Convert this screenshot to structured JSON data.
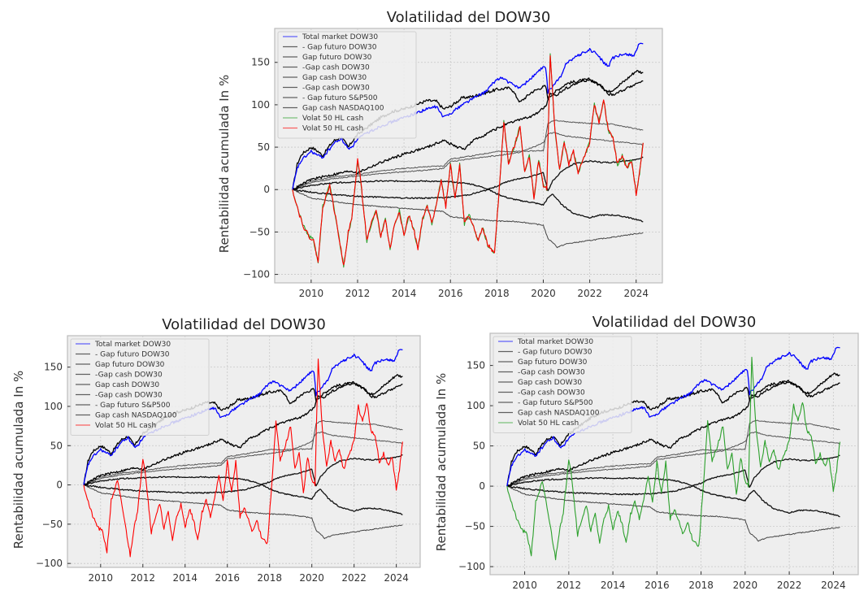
{
  "chart_data": [
    {
      "id": "top",
      "type": "line",
      "title": "Volatilidad del DOW30",
      "xlabel": "",
      "ylabel": "Rentabilidad acumulada In %",
      "xlim": [
        2008.43,
        2025.13
      ],
      "ylim": [
        -110,
        190
      ],
      "xticks": [
        "2010",
        "2012",
        "2014",
        "2016",
        "2018",
        "2020",
        "2022",
        "2024"
      ],
      "yticks": [
        "−100",
        "−50",
        "0",
        "50",
        "100",
        "150"
      ],
      "grid": true,
      "legend_position": "top-left",
      "legend": [
        "Total market DOW30",
        "- Gap futuro DOW30",
        "Gap futuro DOW30",
        "-Gap cash DOW30",
        "Gap cash DOW30",
        "-Gap cash DOW30",
        "- Gap futuro S&P500",
        "Gap cash NASDAQ100",
        "Volat 50 HL cash",
        "Volat 50 HL cash"
      ],
      "volat_colors": [
        "#2ca02c",
        "#ff0000"
      ]
    },
    {
      "id": "bottom-left",
      "type": "line",
      "title": "Volatilidad del DOW30",
      "xlabel": "",
      "ylabel": "Rentabilidad acumulada In %",
      "xlim": [
        2008.43,
        2025.13
      ],
      "ylim": [
        -105,
        190
      ],
      "xticks": [
        "2010",
        "2012",
        "2014",
        "2016",
        "2018",
        "2020",
        "2022",
        "2024"
      ],
      "yticks": [
        "−100",
        "−50",
        "0",
        "50",
        "100",
        "150"
      ],
      "grid": true,
      "legend_position": "top-left",
      "legend": [
        "Total market DOW30",
        "- Gap futuro DOW30",
        "Gap futuro DOW30",
        "-Gap cash DOW30",
        "Gap cash DOW30",
        "-Gap cash DOW30",
        "- Gap futuro S&P500",
        "Gap cash NASDAQ100",
        "Volat 50 HL cash"
      ],
      "volat_colors": [
        "#ff0000"
      ]
    },
    {
      "id": "bottom-right",
      "type": "line",
      "title": "Volatilidad del DOW30",
      "xlabel": "",
      "ylabel": "Rentabilidad acumulada In %",
      "xlim": [
        2008.43,
        2025.13
      ],
      "ylim": [
        -110,
        190
      ],
      "xticks": [
        "2010",
        "2012",
        "2014",
        "2016",
        "2018",
        "2020",
        "2022",
        "2024"
      ],
      "yticks": [
        "−100",
        "−50",
        "0",
        "50",
        "100",
        "150"
      ],
      "grid": true,
      "legend_position": "top-left",
      "legend": [
        "Total market DOW30",
        "- Gap futuro DOW30",
        "Gap futuro DOW30",
        "-Gap cash DOW30",
        "Gap cash DOW30",
        "-Gap cash DOW30",
        "- Gap futuro S&P500",
        "Gap cash NASDAQ100",
        "Volat 50 HL cash"
      ],
      "volat_colors": [
        "#2ca02c"
      ]
    }
  ],
  "series": {
    "total_market": {
      "color": "#0000ff",
      "x": [
        2009.2,
        2009.4,
        2009.6,
        2010,
        2010.3,
        2010.5,
        2010.8,
        2011,
        2011.3,
        2011.6,
        2011.8,
        2012,
        2012.5,
        2013,
        2013.5,
        2014,
        2014.5,
        2015,
        2015.4,
        2015.7,
        2016,
        2016.5,
        2017,
        2017.5,
        2018,
        2018.2,
        2018.6,
        2019,
        2019.5,
        2019.9,
        2020.1,
        2020.2,
        2020.5,
        2020.8,
        2021,
        2021.5,
        2022,
        2022.3,
        2022.6,
        2022.8,
        2023,
        2023.3,
        2023.6,
        2023.9,
        2024.1,
        2024.3
      ],
      "y": [
        0,
        25,
        35,
        45,
        40,
        38,
        48,
        55,
        60,
        48,
        52,
        60,
        68,
        75,
        80,
        85,
        90,
        95,
        98,
        85,
        90,
        100,
        108,
        115,
        130,
        132,
        125,
        120,
        132,
        142,
        145,
        115,
        125,
        135,
        150,
        158,
        165,
        160,
        150,
        145,
        155,
        158,
        160,
        158,
        170,
        172
      ]
    },
    "gap_fut_a": {
      "color": "#000000",
      "x": [
        2009.2,
        2009.4,
        2009.6,
        2010,
        2010.3,
        2010.5,
        2010.8,
        2011,
        2011.3,
        2011.6,
        2011.8,
        2012,
        2012.5,
        2013,
        2013.5,
        2014,
        2014.5,
        2015,
        2015.4,
        2015.7,
        2016,
        2016.5,
        2017,
        2017.5,
        2018,
        2018.6,
        2019,
        2019.5,
        2019.9,
        2020.1,
        2020.2,
        2020.5,
        2021,
        2021.5,
        2022,
        2022.3,
        2022.6,
        2022.8,
        2023,
        2023.5,
        2024,
        2024.3
      ],
      "y": [
        0,
        30,
        42,
        50,
        45,
        40,
        52,
        58,
        62,
        50,
        58,
        65,
        75,
        85,
        92,
        95,
        100,
        105,
        104,
        95,
        98,
        108,
        110,
        114,
        118,
        120,
        103,
        115,
        120,
        122,
        108,
        115,
        125,
        128,
        130,
        125,
        120,
        115,
        118,
        128,
        140,
        138
      ]
    },
    "gap_mid": {
      "color": "#000000",
      "x": [
        2009.2,
        2010,
        2011,
        2011.7,
        2012,
        2013,
        2014,
        2015,
        2015.7,
        2016.3,
        2016.6,
        2017,
        2018,
        2019,
        2019.5,
        2020.1,
        2020.3,
        2020.6,
        2021,
        2021.5,
        2022,
        2022.5,
        2022.8,
        2023,
        2023.5,
        2024,
        2024.3
      ],
      "y": [
        0,
        12,
        18,
        22,
        20,
        32,
        42,
        50,
        58,
        50,
        48,
        58,
        72,
        83,
        86,
        98,
        112,
        112,
        120,
        126,
        130,
        122,
        112,
        112,
        118,
        125,
        128
      ]
    },
    "gray_up": {
      "color": "#555555",
      "x": [
        2009.2,
        2010,
        2011,
        2012,
        2013,
        2014,
        2015,
        2015.7,
        2016,
        2017,
        2018,
        2019,
        2020,
        2020.2,
        2020.5,
        2021,
        2022,
        2023,
        2024.3
      ],
      "y": [
        0,
        10,
        15,
        18,
        22,
        25,
        27,
        28,
        36,
        40,
        45,
        45,
        46,
        78,
        82,
        80,
        78,
        77,
        70
      ]
    },
    "gray_mid": {
      "color": "#555555",
      "x": [
        2009.2,
        2010,
        2011,
        2012,
        2013,
        2014,
        2015,
        2015.7,
        2016,
        2017,
        2018,
        2019,
        2020,
        2020.2,
        2020.5,
        2021,
        2022,
        2023,
        2024.3
      ],
      "y": [
        0,
        8,
        13,
        16,
        19,
        21,
        23,
        25,
        33,
        37,
        40,
        44,
        55,
        66,
        67,
        63,
        60,
        57,
        53
      ]
    },
    "arch_down": {
      "color": "#000000",
      "x": [
        2009.2,
        2010,
        2011,
        2012,
        2013,
        2014,
        2015,
        2016,
        2016.8,
        2017.5,
        2018,
        2018.5,
        2019,
        2019.5,
        2020,
        2020.2,
        2020.4,
        2020.8,
        2021.3,
        2022,
        2022.5,
        2023,
        2023.5,
        2024,
        2024.3
      ],
      "y": [
        0,
        5,
        8,
        9,
        10,
        10,
        10,
        9,
        7,
        2,
        -5,
        -10,
        -13,
        -15,
        -18,
        -10,
        -5,
        -18,
        -28,
        -33,
        -30,
        -30,
        -32,
        -35,
        -38
      ]
    },
    "arch_up": {
      "color": "#000000",
      "x": [
        2009.2,
        2010,
        2011,
        2012,
        2013,
        2014,
        2015,
        2016,
        2016.8,
        2017.5,
        2018,
        2018.5,
        2019,
        2019.5,
        2020,
        2020.2,
        2020.4,
        2020.8,
        2021.3,
        2022,
        2022.5,
        2023,
        2023.5,
        2024,
        2024.3
      ],
      "y": [
        0,
        -3,
        -6,
        -8,
        -9,
        -10,
        -10,
        -9,
        -6,
        -1,
        4,
        10,
        13,
        16,
        20,
        -2,
        10,
        22,
        30,
        34,
        32,
        32,
        34,
        35,
        38
      ]
    },
    "gray_bottom": {
      "color": "#555555",
      "x": [
        2009.2,
        2010,
        2011,
        2012,
        2013,
        2014,
        2015,
        2015.7,
        2016,
        2017,
        2018,
        2019,
        2020,
        2020.2,
        2020.4,
        2020.6,
        2021,
        2022,
        2023,
        2024,
        2024.3
      ],
      "y": [
        0,
        -10,
        -14,
        -18,
        -20,
        -22,
        -24,
        -26,
        -32,
        -35,
        -37,
        -38,
        -42,
        -58,
        -62,
        -68,
        -64,
        -60,
        -56,
        -52,
        -51
      ]
    },
    "volat": {
      "x": [
        2009.2,
        2009.5,
        2009.7,
        2009.9,
        2010.1,
        2010.3,
        2010.5,
        2010.8,
        2011.1,
        2011.4,
        2011.6,
        2011.75,
        2012,
        2012.1,
        2012.4,
        2012.6,
        2012.8,
        2013,
        2013.2,
        2013.4,
        2013.6,
        2013.8,
        2014,
        2014.2,
        2014.4,
        2014.6,
        2014.8,
        2015,
        2015.2,
        2015.4,
        2015.6,
        2015.8,
        2016,
        2016.2,
        2016.4,
        2016.6,
        2016.8,
        2017,
        2017.2,
        2017.4,
        2017.6,
        2017.9,
        2018.1,
        2018.3,
        2018.5,
        2018.8,
        2019,
        2019.2,
        2019.4,
        2019.6,
        2019.8,
        2020,
        2020.15,
        2020.3,
        2020.5,
        2020.7,
        2020.9,
        2021.1,
        2021.3,
        2021.5,
        2021.7,
        2022,
        2022.2,
        2022.4,
        2022.6,
        2022.8,
        2023,
        2023.2,
        2023.4,
        2023.6,
        2023.8,
        2024,
        2024.15,
        2024.3
      ],
      "y": [
        0,
        -30,
        -45,
        -55,
        -60,
        -85,
        -20,
        5,
        -40,
        -90,
        -50,
        -35,
        35,
        20,
        -60,
        -40,
        -25,
        -55,
        -35,
        -70,
        -40,
        -25,
        -55,
        -30,
        -45,
        -70,
        -35,
        -20,
        -40,
        -15,
        10,
        -20,
        30,
        -10,
        30,
        -40,
        -30,
        -45,
        -60,
        -45,
        -65,
        -75,
        0,
        80,
        30,
        55,
        75,
        20,
        40,
        -10,
        35,
        5,
        0,
        160,
        70,
        25,
        55,
        30,
        45,
        20,
        35,
        55,
        100,
        80,
        105,
        70,
        60,
        30,
        40,
        25,
        35,
        -5,
        20,
        55
      ]
    }
  }
}
